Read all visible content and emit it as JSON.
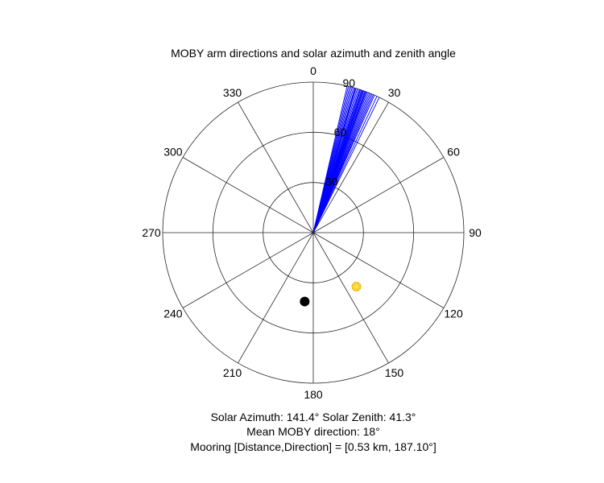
{
  "chart_data": {
    "type": "polar",
    "title": "MOBY arm directions and solar azimuth and zenith angle",
    "theta_zero": "top",
    "theta_direction": "clockwise",
    "theta_ticks": [
      "0",
      "30",
      "60",
      "90",
      "120",
      "150",
      "180",
      "210",
      "240",
      "270",
      "300",
      "330"
    ],
    "r_ticks": [
      "30",
      "60",
      "90"
    ],
    "r_tick_values": [
      30,
      60,
      90
    ],
    "r_max": 90,
    "grid": true,
    "series": [
      {
        "type": "rays",
        "color": "#0000ff",
        "r": 90,
        "theta_deg": [
          13,
          13.5,
          14,
          14.5,
          15,
          15.5,
          16,
          16.2,
          16.5,
          17,
          17.5,
          18,
          18,
          18.3,
          18.7,
          19,
          19.3,
          19.6,
          20,
          20.3,
          20.6,
          21,
          21.5,
          22,
          22.5,
          23,
          23.5,
          24,
          25,
          26
        ]
      },
      {
        "type": "marker",
        "label": "sun",
        "color": "#ffcc00",
        "theta_deg": 141.4,
        "r": 41.3
      },
      {
        "type": "marker",
        "label": "mooring",
        "color": "#000000",
        "theta_deg": 187.1,
        "r": 41.5
      }
    ],
    "footer_lines": [
      "Solar Azimuth: 141.4°    Solar Zenith: 41.3°",
      "Mean MOBY direction: 18°",
      "Mooring [Distance,Direction] = [0.53 km, 187.10°]"
    ]
  }
}
